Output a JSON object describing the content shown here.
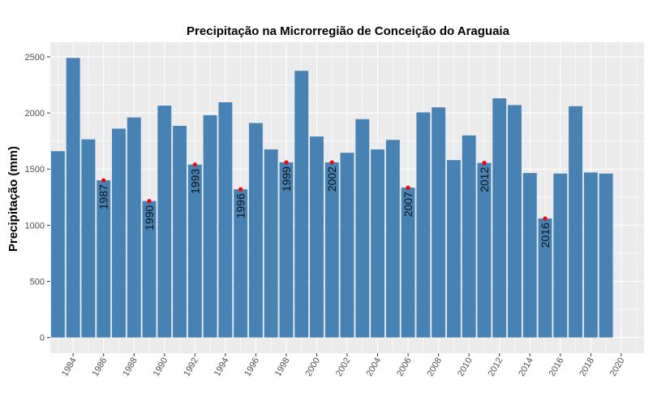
{
  "chart_data": {
    "type": "bar",
    "title": "Precipitação na Microrregião de Conceição do Araguaia",
    "xlabel": "",
    "ylabel": "Precipitação (mm)",
    "ylim": [
      -140,
      2630
    ],
    "y_ticks": [
      0,
      500,
      1000,
      1500,
      2000,
      2500
    ],
    "x_range": [
      1982.5,
      2021.5
    ],
    "x_ticks": [
      1984,
      1986,
      1988,
      1990,
      1992,
      1994,
      1996,
      1998,
      2000,
      2002,
      2004,
      2006,
      2008,
      2010,
      2012,
      2014,
      2016,
      2018,
      2020
    ],
    "x_tick_labels": [
      "1984",
      "1986",
      "1988",
      "1990",
      "1992",
      "1994",
      "1996",
      "1998",
      "2000",
      "2002",
      "2004",
      "2006",
      "2008",
      "2010",
      "2012",
      "2014",
      "2016",
      "2018",
      "2020"
    ],
    "years": [
      1983,
      1984,
      1985,
      1986,
      1987,
      1988,
      1989,
      1990,
      1991,
      1992,
      1993,
      1994,
      1995,
      1996,
      1997,
      1998,
      1999,
      2000,
      2001,
      2002,
      2003,
      2004,
      2005,
      2006,
      2007,
      2008,
      2009,
      2010,
      2011,
      2012,
      2013,
      2014,
      2015,
      2016,
      2017,
      2018,
      2019
    ],
    "values": [
      1660,
      2490,
      1765,
      1400,
      1860,
      1960,
      1215,
      2065,
      1885,
      1540,
      1980,
      2095,
      1320,
      1910,
      1675,
      1560,
      2375,
      1790,
      1560,
      1645,
      1945,
      1675,
      1760,
      1335,
      2005,
      2050,
      1580,
      1800,
      1555,
      2130,
      2070,
      1465,
      1060,
      1460,
      2060,
      1470,
      1460
    ],
    "highlights": [
      {
        "label": "1987",
        "year": 1986,
        "value": 1400
      },
      {
        "label": "1990",
        "year": 1989,
        "value": 1215
      },
      {
        "label": "1993",
        "year": 1992,
        "value": 1540
      },
      {
        "label": "1996",
        "year": 1995,
        "value": 1320
      },
      {
        "label": "1999",
        "year": 1998,
        "value": 1560
      },
      {
        "label": "2002",
        "year": 2001,
        "value": 1560
      },
      {
        "label": "2007",
        "year": 2006,
        "value": 1335
      },
      {
        "label": "2012",
        "year": 2011,
        "value": 1555
      },
      {
        "label": "2016",
        "year": 2015,
        "value": 1060
      }
    ],
    "bar_color": "#4682B4",
    "point_color": "#FF0000",
    "panel_color": "#EBEBEB",
    "grid": true,
    "legend": "none"
  }
}
